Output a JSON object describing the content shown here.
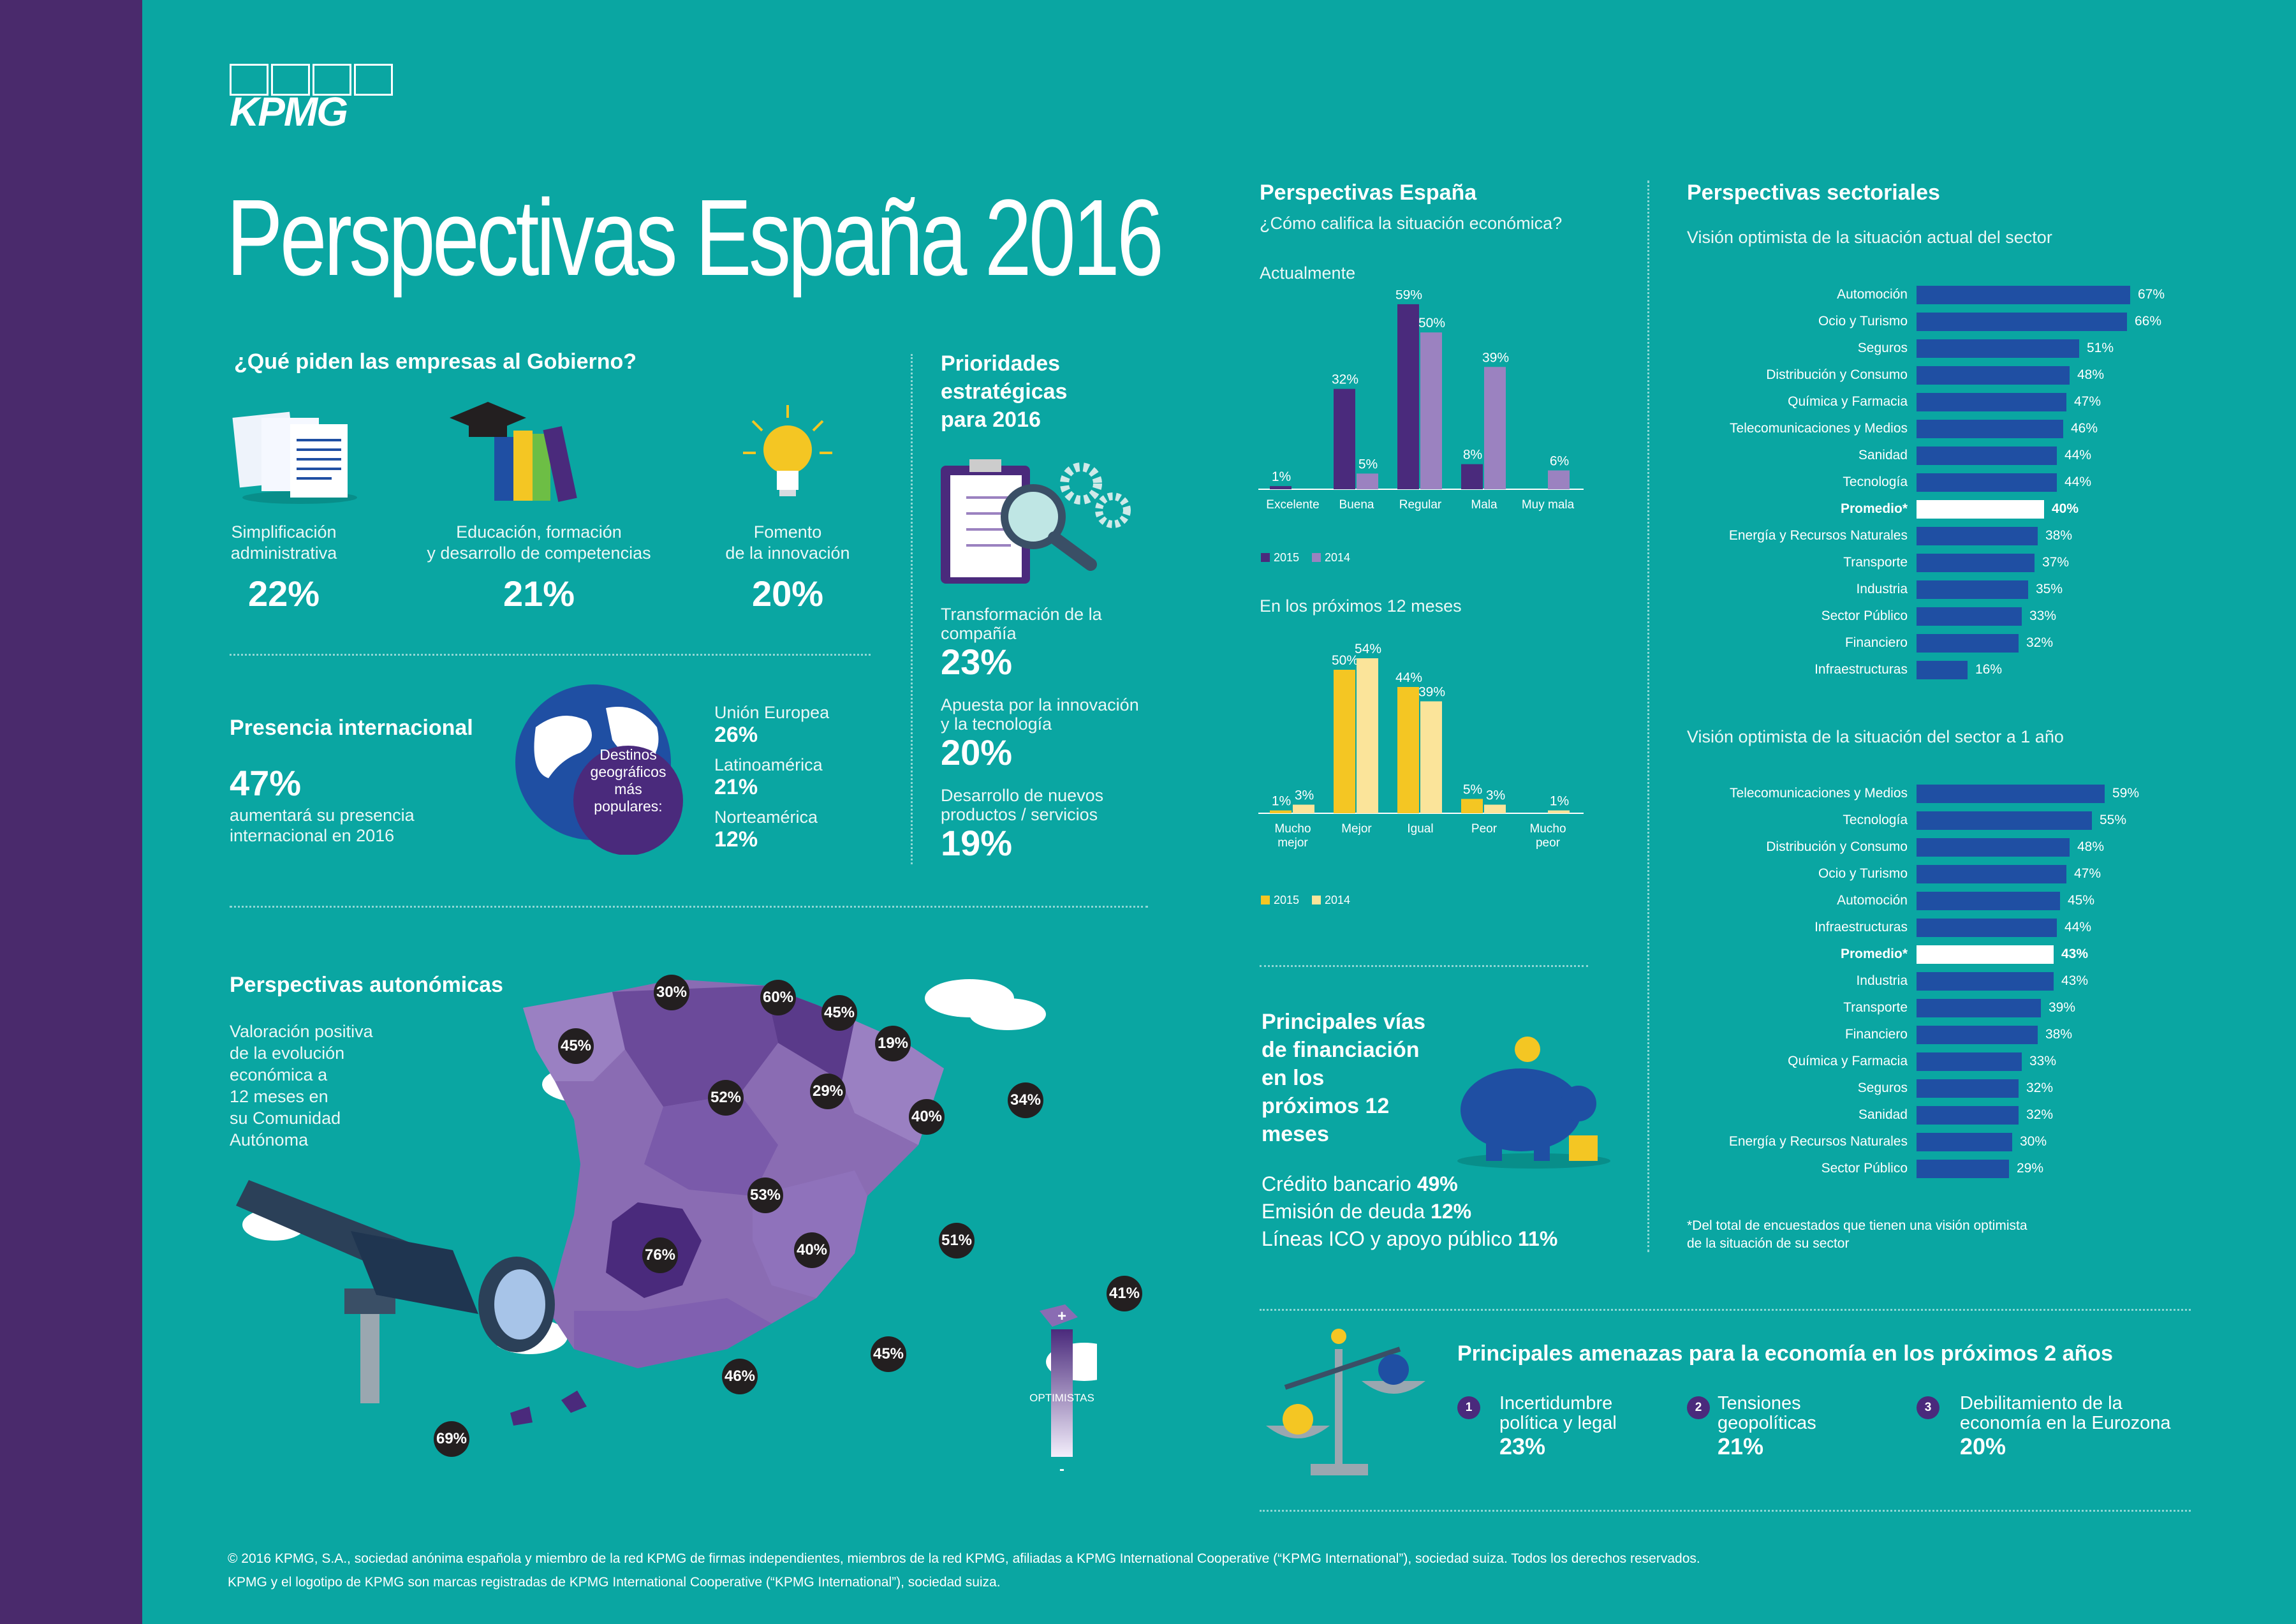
{
  "brand": "KPMG",
  "title": "Perspectivas España 2016",
  "gobierno": {
    "heading": "¿Qué piden las empresas al Gobierno?",
    "items": [
      {
        "label": "Simplificación\nadministrativa",
        "value": "22%",
        "icon": "documents-icon"
      },
      {
        "label": "Educación, formación\ny desarrollo de competencias",
        "value": "21%",
        "icon": "graduation-books-icon"
      },
      {
        "label": "Fomento\nde la innovación",
        "value": "20%",
        "icon": "lightbulb-icon"
      }
    ]
  },
  "prioridades": {
    "heading": "Prioridades\nestratégicas\npara 2016",
    "items": [
      {
        "label": "Transformación de la\ncompañía",
        "value": "23%"
      },
      {
        "label": "Apuesta por la innovación\ny la tecnología",
        "value": "20%"
      },
      {
        "label": "Desarrollo de nuevos\nproductos / servicios",
        "value": "19%"
      }
    ]
  },
  "internacional": {
    "heading": "Presencia internacional",
    "value": "47%",
    "text": "aumentará su presencia\ninternacional en 2016",
    "globe_label": "Destinos\ngeográficos\nmás\npopulares:",
    "destinos": [
      {
        "name": "Unión Europea",
        "value": "26%"
      },
      {
        "name": "Latinoamérica",
        "value": "21%"
      },
      {
        "name": "Norteamérica",
        "value": "12%"
      }
    ]
  },
  "autonomicas": {
    "heading": "Perspectivas autonómicas",
    "text": "Valoración positiva\nde la evolución\neconómica a\n12 meses en\nsu Comunidad\nAutónoma",
    "values": [
      "30%",
      "60%",
      "45%",
      "19%",
      "45%",
      "52%",
      "29%",
      "40%",
      "34%",
      "53%",
      "76%",
      "40%",
      "51%",
      "41%",
      "46%",
      "45%",
      "69%"
    ],
    "legend": {
      "plus": "+",
      "label": "OPTIMISTAS",
      "minus": "-"
    }
  },
  "espana": {
    "heading": "Perspectivas España",
    "question": "¿Cómo califica la situación económica?"
  },
  "chart_data": [
    {
      "type": "bar",
      "title": "Actualmente",
      "categories": [
        "Excelente",
        "Buena",
        "Regular",
        "Mala",
        "Muy mala"
      ],
      "series": [
        {
          "name": "2015",
          "values": [
            1,
            32,
            59,
            8,
            null
          ],
          "color": "#4a2a7c"
        },
        {
          "name": "2014",
          "values": [
            null,
            5,
            50,
            39,
            6
          ],
          "color": "#9b82c0"
        }
      ],
      "ylim": [
        0,
        60
      ]
    },
    {
      "type": "bar",
      "title": "En los próximos 12 meses",
      "categories": [
        "Mucho\nmejor",
        "Mejor",
        "Igual",
        "Peor",
        "Mucho\npeor"
      ],
      "series": [
        {
          "name": "2015",
          "values": [
            1,
            50,
            44,
            5,
            null
          ],
          "color": "#f4c623"
        },
        {
          "name": "2014",
          "values": [
            3,
            54,
            39,
            3,
            1
          ],
          "color": "#fbe49a"
        }
      ],
      "ylim": [
        0,
        60
      ]
    },
    {
      "type": "bar",
      "title": "Visión optimista de la situación actual del sector",
      "categories": [
        "Automoción",
        "Ocio y Turismo",
        "Seguros",
        "Distribución y Consumo",
        "Química y Farmacia",
        "Telecomunicaciones y Medios",
        "Sanidad",
        "Tecnología",
        "Promedio*",
        "Energía y Recursos Naturales",
        "Transporte",
        "Industria",
        "Sector Público",
        "Financiero",
        "Infraestructuras"
      ],
      "values": [
        67,
        66,
        51,
        48,
        47,
        46,
        44,
        44,
        40,
        38,
        37,
        35,
        33,
        32,
        16
      ]
    },
    {
      "type": "bar",
      "title": "Visión optimista de la situación del sector a 1 año",
      "categories": [
        "Telecomunicaciones y Medios",
        "Tecnología",
        "Distribución y Consumo",
        "Ocio y Turismo",
        "Automoción",
        "Infraestructuras",
        "Promedio*",
        "Industria",
        "Transporte",
        "Financiero",
        "Química y Farmacia",
        "Seguros",
        "Sanidad",
        "Energía y Recursos Naturales",
        "Sector Público"
      ],
      "values": [
        59,
        55,
        48,
        47,
        45,
        44,
        43,
        43,
        39,
        38,
        33,
        32,
        32,
        30,
        29
      ]
    }
  ],
  "sectoriales": {
    "heading": "Perspectivas sectoriales",
    "footnote": "*Del total de encuestados que tienen una visión optimista\nde la situación de su sector"
  },
  "financiacion": {
    "heading": "Principales vías\nde financiación\nen los\npróximos 12\nmeses",
    "items": [
      {
        "label": "Crédito bancario",
        "value": "49%"
      },
      {
        "label": "Emisión de deuda",
        "value": "12%"
      },
      {
        "label": "Líneas ICO y apoyo público",
        "value": "11%"
      }
    ]
  },
  "amenazas": {
    "heading": "Principales amenazas para la economía en los próximos 2 años",
    "items": [
      {
        "n": "1",
        "label": "Incertidumbre\npolítica y legal",
        "value": "23%"
      },
      {
        "n": "2",
        "label": "Tensiones\ngeopolíticas",
        "value": "21%"
      },
      {
        "n": "3",
        "label": "Debilitamiento de la\neconomía en la Eurozona",
        "value": "20%"
      }
    ]
  },
  "footer": {
    "line1": "© 2016 KPMG, S.A., sociedad anónima española y miembro de la red KPMG de firmas independientes, miembros de la red KPMG, afiliadas a KPMG International Cooperative (“KPMG International”), sociedad suiza. Todos los derechos reservados.",
    "line2": "KPMG y el logotipo de KPMG son marcas registradas de KPMG International Cooperative (“KPMG International”), sociedad suiza."
  }
}
